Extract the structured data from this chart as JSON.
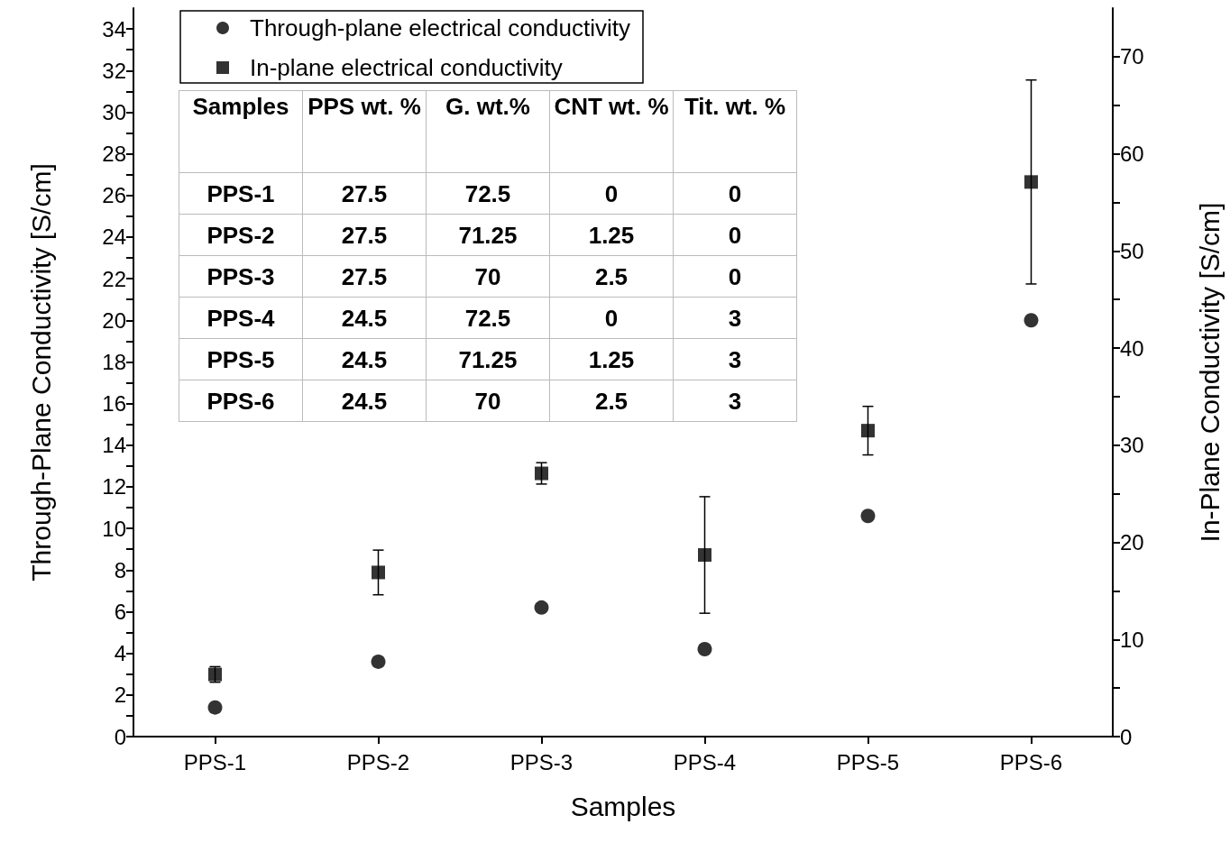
{
  "chart_data": {
    "type": "scatter",
    "xlabel": "Samples",
    "ylabel": "Through-Plane Conductivity [S/cm]",
    "y2label": "In-Plane Conductivity [S/cm]",
    "categories": [
      "PPS-1",
      "PPS-2",
      "PPS-3",
      "PPS-4",
      "PPS-5",
      "PPS-6"
    ],
    "series": [
      {
        "name": "Through-plane electrical conductivity",
        "color": "#000000",
        "marker": "circle",
        "values": [
          1.4,
          3.6,
          6.2,
          4.2,
          10.6,
          20.0
        ]
      },
      {
        "name": "In-plane electrical conductivity",
        "color": "#000000",
        "marker": "square",
        "axis": "y2",
        "values": [
          6.4,
          16.9,
          27.1,
          18.7,
          31.5,
          57.1
        ],
        "errors": [
          0.8,
          2.3,
          1.1,
          6.0,
          2.5,
          10.5
        ]
      }
    ],
    "ylim": [
      0,
      35
    ],
    "yticks": [
      0,
      2,
      4,
      6,
      8,
      10,
      12,
      14,
      16,
      18,
      20,
      22,
      24,
      26,
      28,
      30,
      32,
      34
    ],
    "y2lim": [
      0,
      75
    ],
    "y2ticks": [
      0,
      10,
      20,
      30,
      40,
      50,
      60,
      70
    ],
    "legend": "top left",
    "grid": false,
    "annotations": [
      "Samples",
      "PPS wt. %",
      "G. wt.%",
      "CNT wt. %",
      "Tit. wt. %",
      "PPS-1",
      "27.5",
      "72.5",
      "0",
      "0",
      "PPS-2",
      "27.5",
      "71.25",
      "1.25",
      "0",
      "PPS-3",
      "27.5",
      "70",
      "2.5",
      "0",
      "PPS-4",
      "24.5",
      "72.5",
      "0",
      "3",
      "PPS-5",
      "24.5",
      "71.25",
      "1.25",
      "3",
      "PPS-6",
      "24.5",
      "70",
      "2.5",
      "3"
    ]
  }
}
